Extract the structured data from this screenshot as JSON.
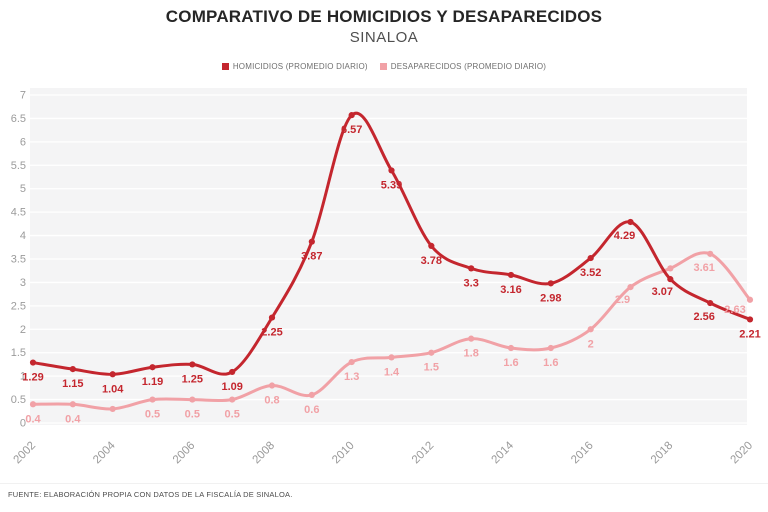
{
  "header": {
    "title": "COMPARATIVO DE HOMICIDIOS Y DESAPARECIDOS",
    "subtitle": "SINALOA"
  },
  "legend": {
    "position": "top-center",
    "items": [
      {
        "label": "HOMICIDIOS (PROMEDIO DIARIO)",
        "color": "#c4262e"
      },
      {
        "label": "DESAPARECIDOS (PROMEDIO DIARIO)",
        "color": "#f1a1a6"
      }
    ]
  },
  "chart_data": {
    "type": "line",
    "title": "COMPARATIVO DE HOMICIDIOS Y DESAPARECIDOS",
    "subtitle": "SINALOA",
    "x": [
      2002,
      2003,
      2004,
      2005,
      2006,
      2007,
      2008,
      2009,
      2010,
      2011,
      2012,
      2013,
      2014,
      2015,
      2016,
      2017,
      2018,
      2019,
      2020
    ],
    "x_tick_labels": [
      "2002",
      "2004",
      "2006",
      "2008",
      "2010",
      "2012",
      "2014",
      "2016",
      "2018",
      "2020"
    ],
    "y_tick_labels": [
      "0",
      "0.5",
      "1",
      "1.5",
      "2",
      "2.5",
      "3",
      "3.5",
      "4",
      "4.5",
      "5",
      "5.5",
      "6",
      "6.5",
      "7"
    ],
    "ylim": [
      0,
      7
    ],
    "y_tick_step": 0.5,
    "grid": "horizontal",
    "legend_position": "top",
    "series": [
      {
        "name": "HOMICIDIOS (PROMEDIO DIARIO)",
        "color": "#c4262e",
        "values": [
          1.29,
          1.15,
          1.04,
          1.19,
          1.25,
          1.09,
          2.25,
          3.87,
          6.57,
          5.39,
          3.78,
          3.3,
          3.16,
          2.98,
          3.52,
          4.29,
          3.07,
          2.56,
          2.21
        ],
        "labels": [
          "1.29",
          "1.15",
          "1.04",
          "1.19",
          "1.25",
          "1.09",
          "2.25",
          "3.87",
          "6.57",
          "5.39",
          "3.78",
          "3.3",
          "3.16",
          "2.98",
          "3.52",
          "4.29",
          "3.07",
          "2.56",
          "2.21"
        ]
      },
      {
        "name": "DESAPARECIDOS (PROMEDIO DIARIO)",
        "color": "#f1a1a6",
        "values": [
          0.4,
          0.4,
          0.3,
          0.5,
          0.5,
          0.5,
          0.8,
          0.6,
          1.3,
          1.4,
          1.5,
          1.8,
          1.6,
          1.6,
          2,
          2.9,
          3.3,
          3.61,
          2.63
        ],
        "labels": [
          "0.4",
          "0.4",
          null,
          "0.5",
          "0.5",
          "0.5",
          "0.8",
          "0.6",
          "1.3",
          "1.4",
          "1.5",
          "1.8",
          "1.6",
          "1.6",
          "2",
          "2.9",
          null,
          "3.61",
          "2.63"
        ]
      }
    ]
  },
  "footer": {
    "source": "FUENTE: ELABORACIÓN PROPIA CON DATOS DE LA FISCALÍA DE SINALOA."
  }
}
